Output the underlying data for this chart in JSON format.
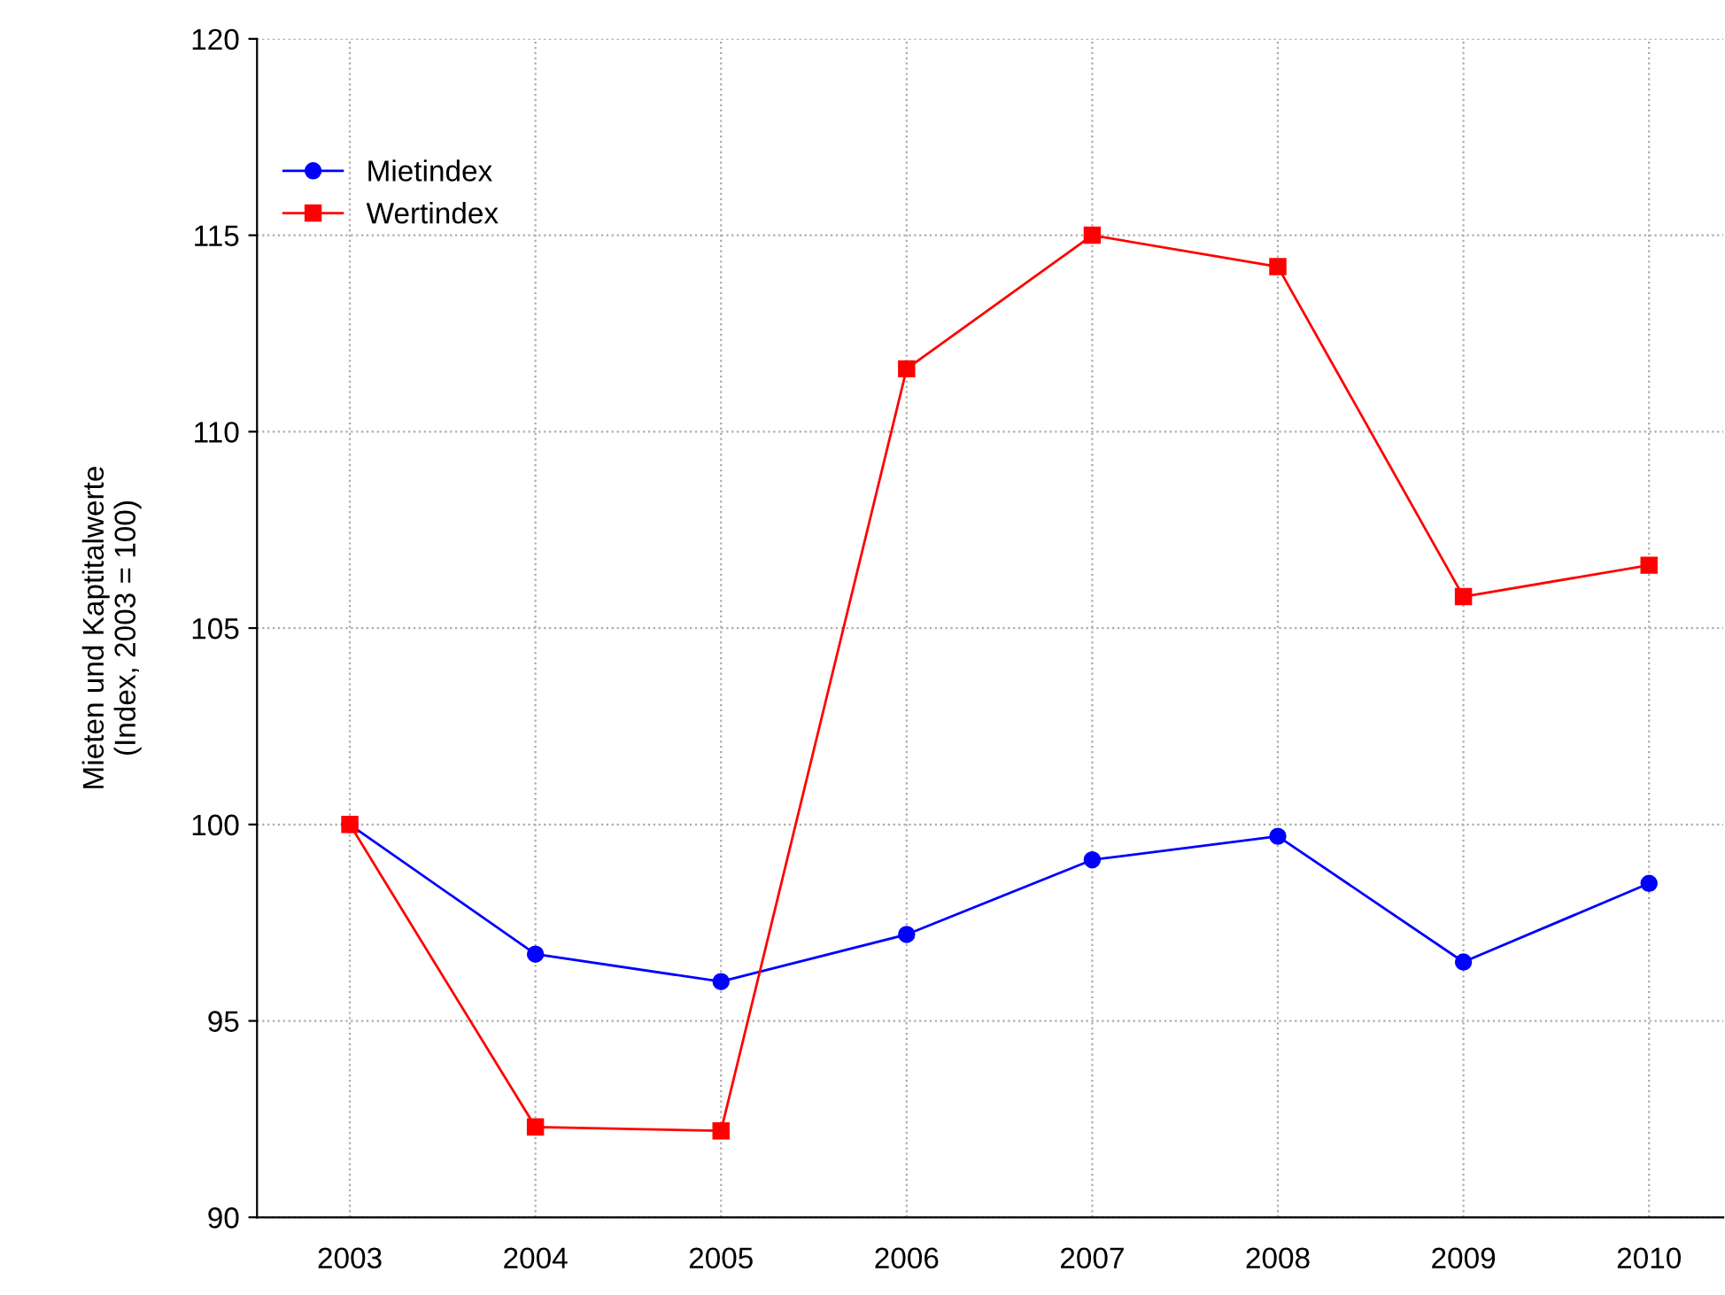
{
  "chart_data": {
    "type": "line",
    "ylabel": "Mieten und Kaptitalwerte\n(Index, 2003 = 100)",
    "categories": [
      "2003",
      "2004",
      "2005",
      "2006",
      "2007",
      "2008",
      "2009",
      "2010"
    ],
    "series": [
      {
        "name": "Mietindex",
        "color": "#0000ff",
        "marker": "circle",
        "values": [
          100,
          96.7,
          96.0,
          97.2,
          99.1,
          99.7,
          96.5,
          98.5
        ]
      },
      {
        "name": "Wertindex",
        "color": "#ff0000",
        "marker": "square",
        "values": [
          100,
          92.3,
          92.2,
          111.6,
          115.0,
          114.2,
          105.8,
          106.6
        ]
      }
    ],
    "ylim": [
      90,
      120
    ],
    "yticks": [
      90,
      95,
      100,
      105,
      110,
      115,
      120
    ],
    "grid": true,
    "legend": "top left",
    "line_style": "solid"
  }
}
